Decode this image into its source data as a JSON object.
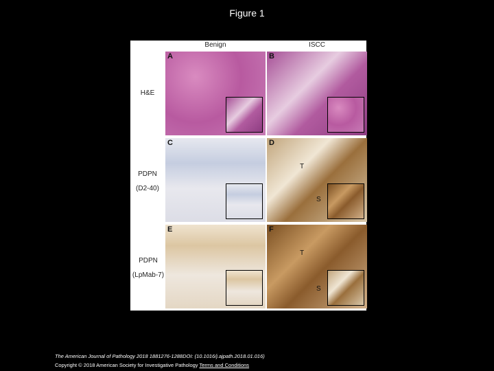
{
  "title": "Figure 1",
  "figure": {
    "column_headers": [
      "Benign",
      "ISCC"
    ],
    "row_labels": [
      [
        "H&E"
      ],
      [
        "PDPN",
        "(D2-40)"
      ],
      [
        "PDPN",
        "(LpMab-7)"
      ]
    ],
    "panels": [
      {
        "letter": "A"
      },
      {
        "letter": "B"
      },
      {
        "letter": "C"
      },
      {
        "letter": "D",
        "marks": [
          "T",
          "S"
        ]
      },
      {
        "letter": "E"
      },
      {
        "letter": "F",
        "marks": [
          "T",
          "S"
        ]
      }
    ]
  },
  "footer": {
    "citation": "The American Journal of Pathology 2018 1881276-1288DOI: (10.1016/j.ajpath.2018.01.016)",
    "copyright": "Copyright © 2018 American Society for Investigative Pathology",
    "link": "Terms and Conditions"
  }
}
